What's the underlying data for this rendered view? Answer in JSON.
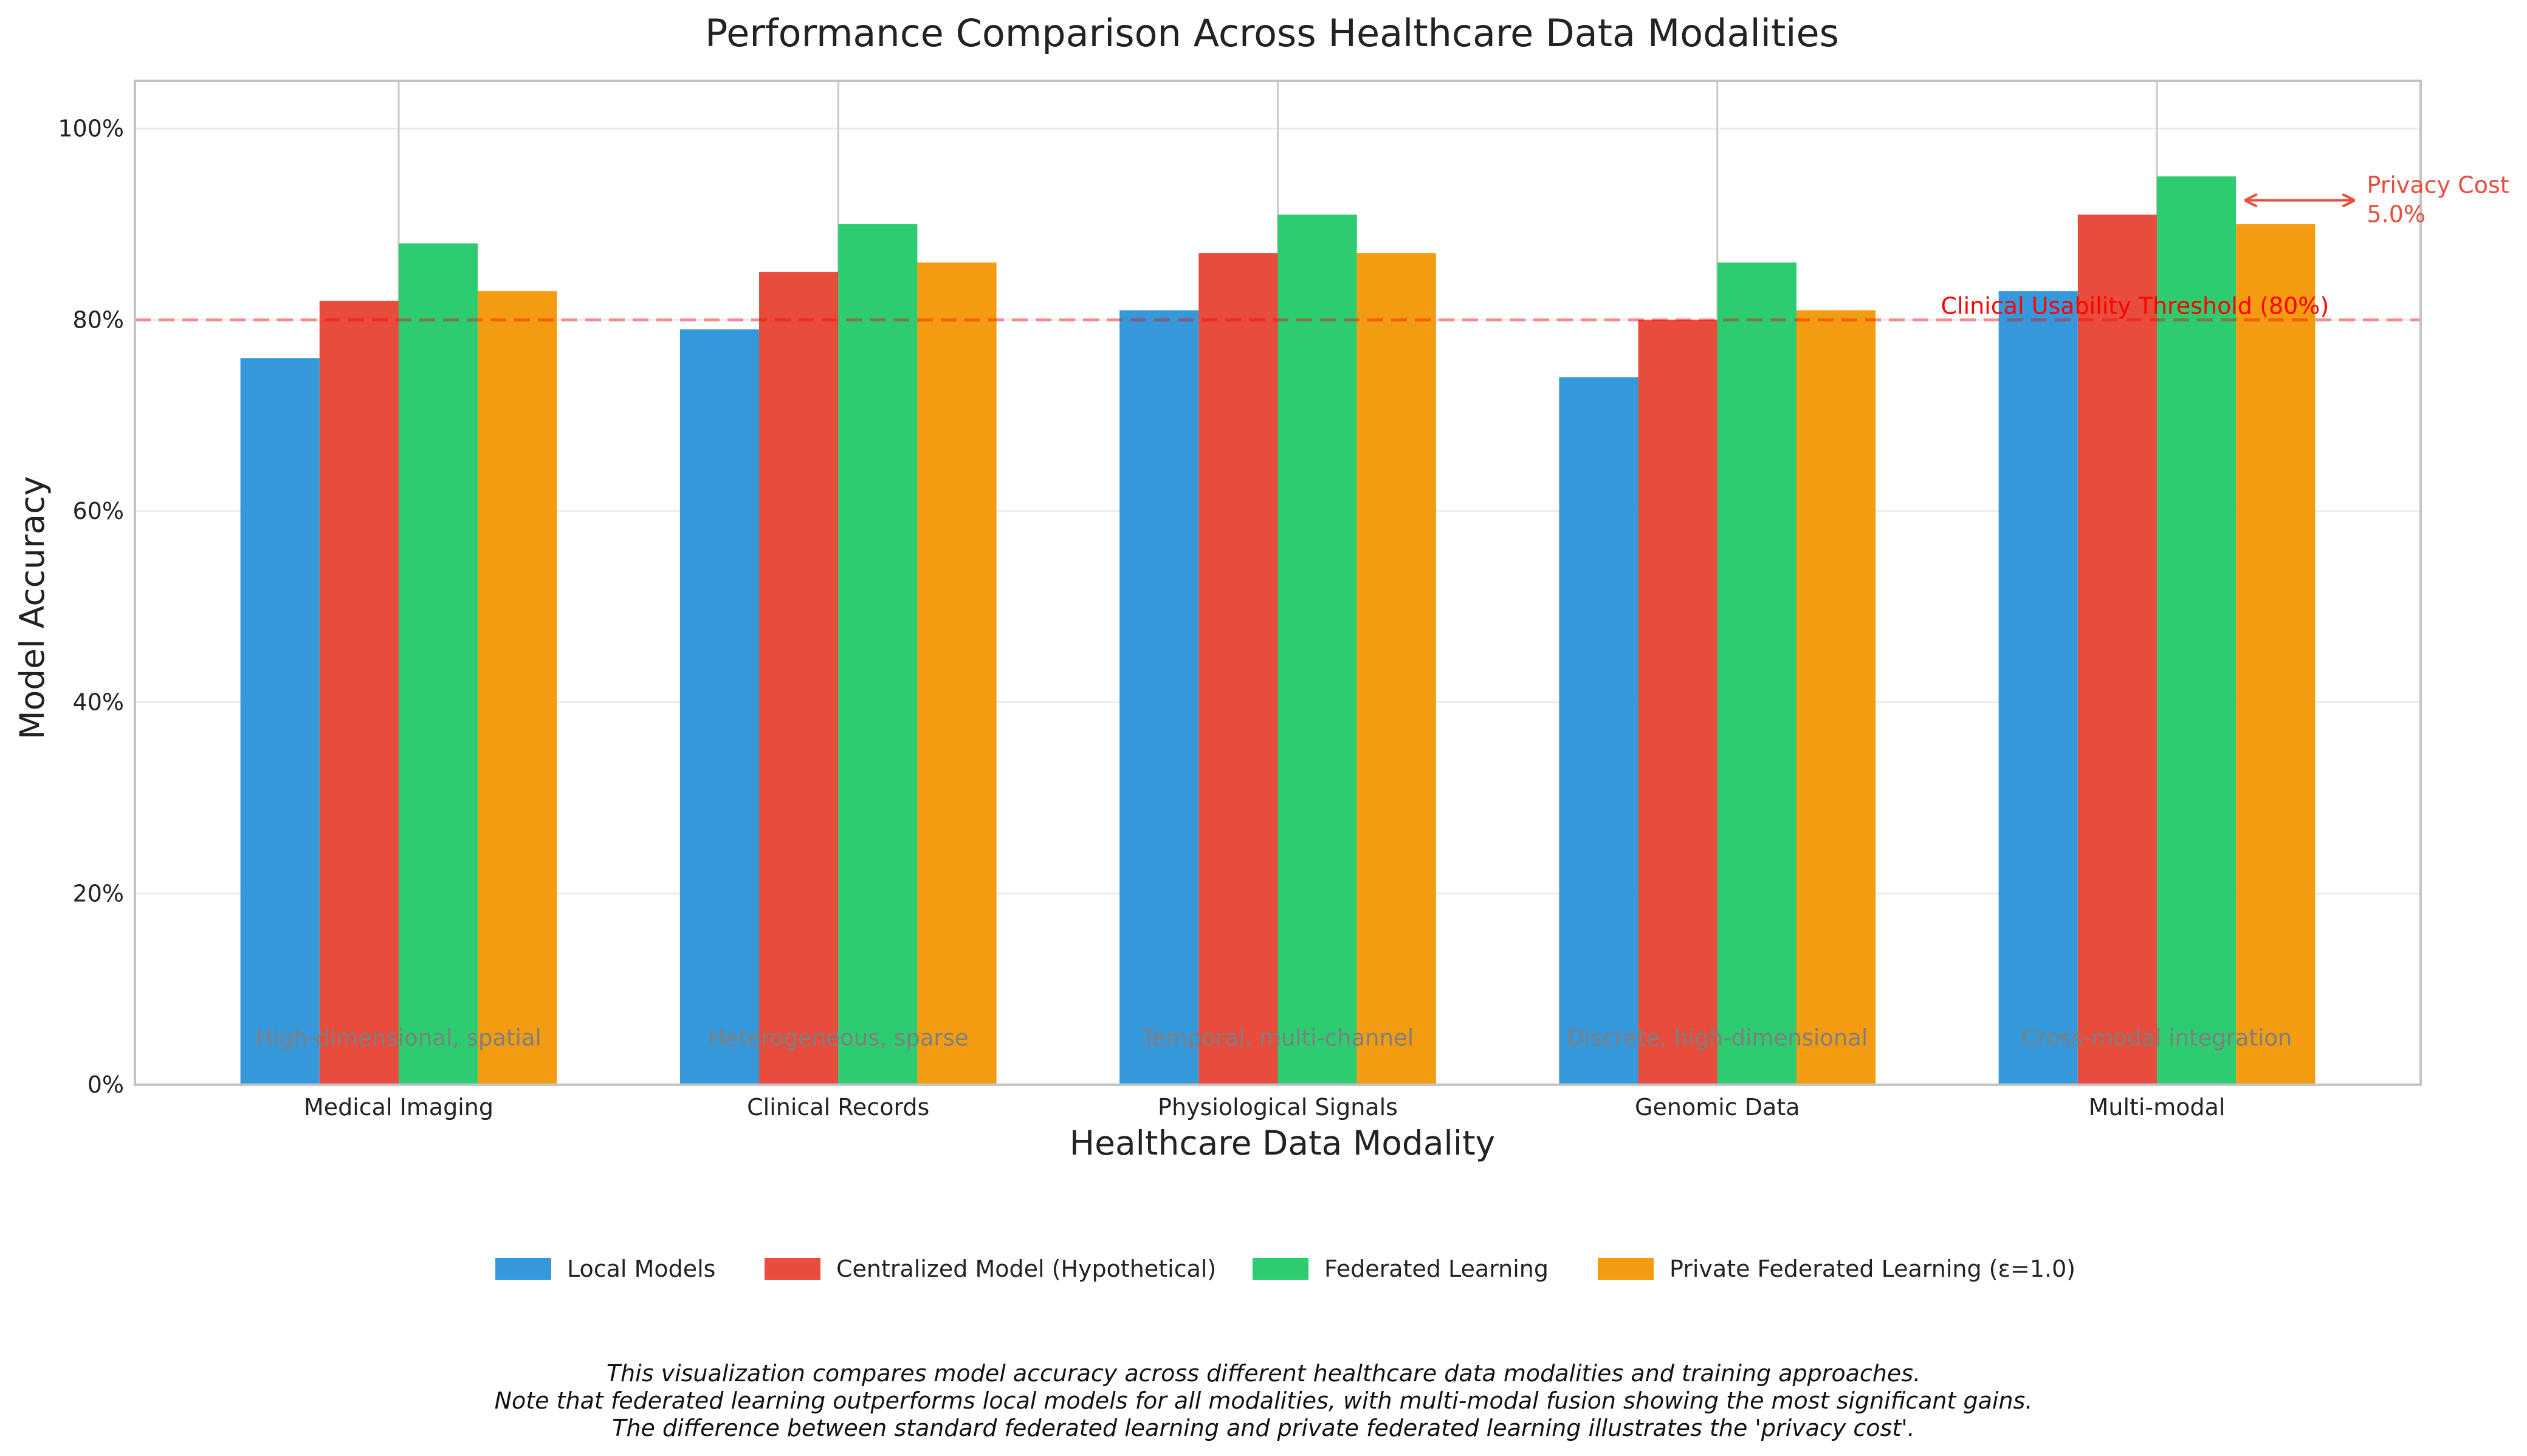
{
  "chart_data": {
    "type": "bar",
    "title": "Performance Comparison Across Healthcare Data Modalities",
    "xlabel": "Healthcare Data Modality",
    "ylabel": "Model Accuracy",
    "ylim": [
      0,
      1.05
    ],
    "yticks": [
      0,
      0.2,
      0.4,
      0.6,
      0.8,
      1.0
    ],
    "ytick_labels": [
      "0%",
      "20%",
      "40%",
      "60%",
      "80%",
      "100%"
    ],
    "categories": [
      "Medical Imaging",
      "Clinical Records",
      "Physiological Signals",
      "Genomic Data",
      "Multi-modal"
    ],
    "category_notes": [
      "High-dimensional, spatial",
      "Heterogeneous, sparse",
      "Temporal, multi-channel",
      "Discrete, high-dimensional",
      "Cross-modal integration"
    ],
    "series": [
      {
        "name": "Local Models",
        "color": "#3498db",
        "values": [
          0.76,
          0.79,
          0.81,
          0.74,
          0.83
        ]
      },
      {
        "name": "Centralized Model (Hypothetical)",
        "color": "#e74c3c",
        "values": [
          0.82,
          0.85,
          0.87,
          0.8,
          0.91
        ]
      },
      {
        "name": "Federated Learning",
        "color": "#2ecc71",
        "values": [
          0.88,
          0.9,
          0.91,
          0.86,
          0.95
        ]
      },
      {
        "name": "Private Federated Learning (ε=1.0)",
        "color": "#f39c12",
        "values": [
          0.83,
          0.86,
          0.87,
          0.81,
          0.9
        ]
      }
    ],
    "threshold": {
      "value": 0.8,
      "label": "Clinical Usability Threshold (80%)",
      "color": "#ff0000"
    },
    "privacy_annotation": {
      "line1": "Privacy Cost",
      "line2": "5.0%",
      "color": "#e74c3c"
    },
    "legend_position": "bottom-center",
    "grid": true
  },
  "footnote": [
    "This visualization compares model accuracy across different healthcare data modalities and training approaches.",
    "Note that federated learning outperforms local models for all modalities, with multi-modal fusion showing the most significant gains.",
    "The difference between standard federated learning and private federated learning illustrates the 'privacy cost'."
  ]
}
